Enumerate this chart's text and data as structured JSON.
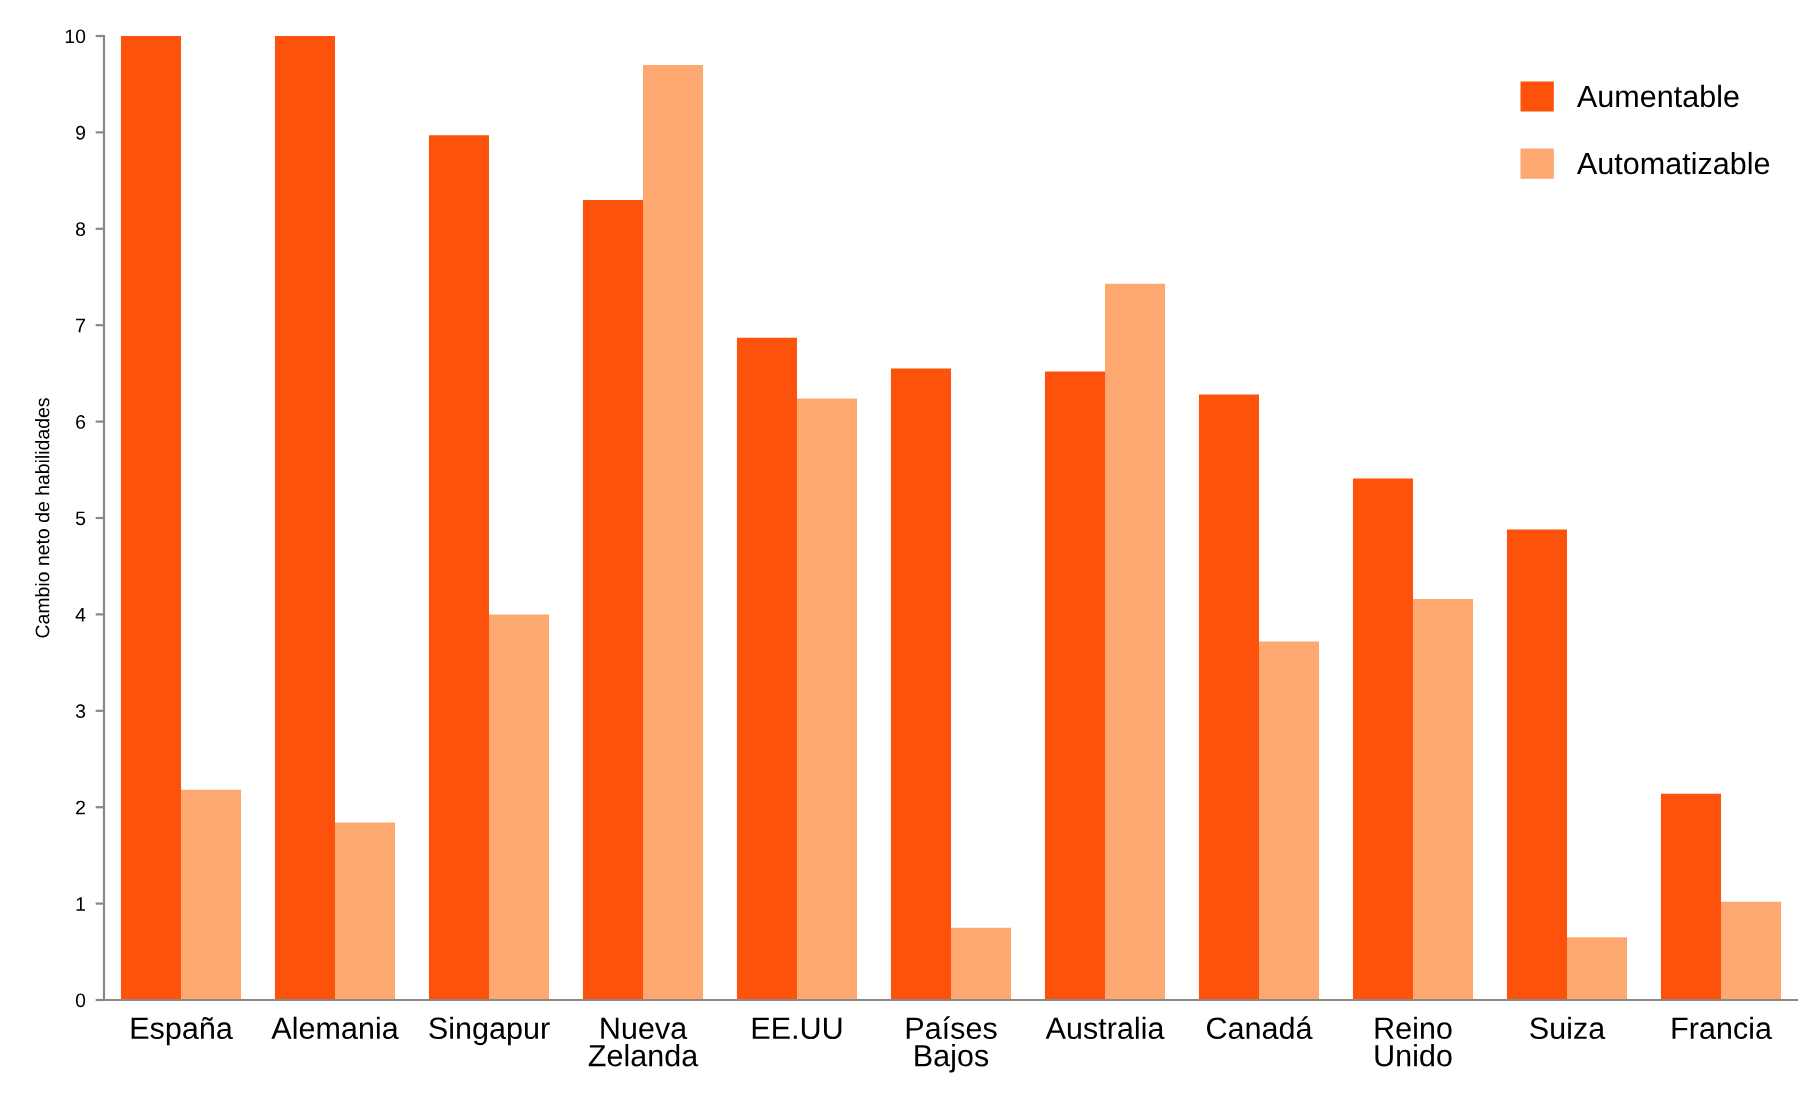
{
  "chart_data": {
    "type": "bar",
    "ylabel": "Cambio neto de habilidades",
    "categories": [
      "España",
      "Alemania",
      "Singapur",
      "Nueva Zelanda",
      "EE.UU",
      "Países Bajos",
      "Australia",
      "Canadá",
      "Reino Unido",
      "Suiza",
      "Francia"
    ],
    "series": [
      {
        "name": "Aumentable",
        "color": "#fc520c",
        "values": [
          10,
          10,
          8.97,
          8.3,
          6.87,
          6.55,
          6.52,
          6.28,
          5.41,
          4.88,
          2.14
        ]
      },
      {
        "name": "Automatizable",
        "color": "#fda870",
        "values": [
          2.18,
          1.84,
          4.0,
          9.7,
          6.24,
          0.75,
          7.43,
          3.72,
          4.16,
          0.65,
          1.02
        ]
      }
    ],
    "ylim": [
      0,
      10
    ],
    "yticks": [
      0,
      1,
      2,
      3,
      4,
      5,
      6,
      7,
      8,
      9,
      10
    ],
    "grid": false,
    "legend": "top right"
  }
}
